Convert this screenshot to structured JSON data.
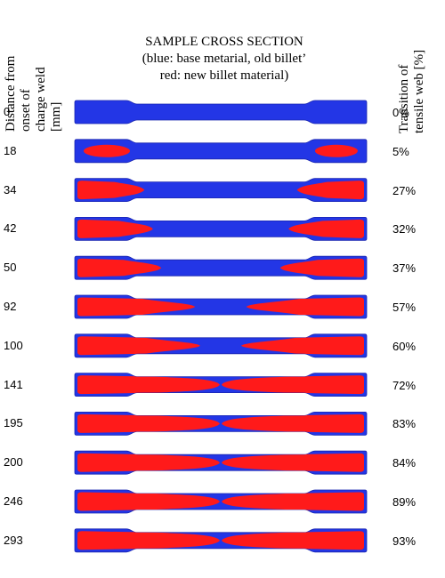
{
  "left_header": [
    "Distance from",
    "onset of",
    "charge weld",
    "[mm]"
  ],
  "right_header": [
    "Transition of",
    "tensile web [%]"
  ],
  "title": {
    "line1": "SAMPLE CROSS SECTION",
    "line2": "(blue: base metarial, old billet’",
    "line3": "red: new billet material)"
  },
  "colors": {
    "base": "#2336e6",
    "new": "#ff1a1a",
    "base_edge": "#1a26b0"
  },
  "rows": [
    {
      "distance": "0",
      "transition": "0%",
      "fraction": 0.0
    },
    {
      "distance": "18",
      "transition": "5%",
      "fraction": 0.05
    },
    {
      "distance": "34",
      "transition": "27%",
      "fraction": 0.27
    },
    {
      "distance": "42",
      "transition": "32%",
      "fraction": 0.32
    },
    {
      "distance": "50",
      "transition": "37%",
      "fraction": 0.37
    },
    {
      "distance": "92",
      "transition": "57%",
      "fraction": 0.57
    },
    {
      "distance": "100",
      "transition": "60%",
      "fraction": 0.6
    },
    {
      "distance": "141",
      "transition": "72%",
      "fraction": 0.72
    },
    {
      "distance": "195",
      "transition": "83%",
      "fraction": 0.83
    },
    {
      "distance": "200",
      "transition": "84%",
      "fraction": 0.84
    },
    {
      "distance": "246",
      "transition": "89%",
      "fraction": 0.89
    },
    {
      "distance": "293",
      "transition": "93%",
      "fraction": 0.93
    }
  ]
}
